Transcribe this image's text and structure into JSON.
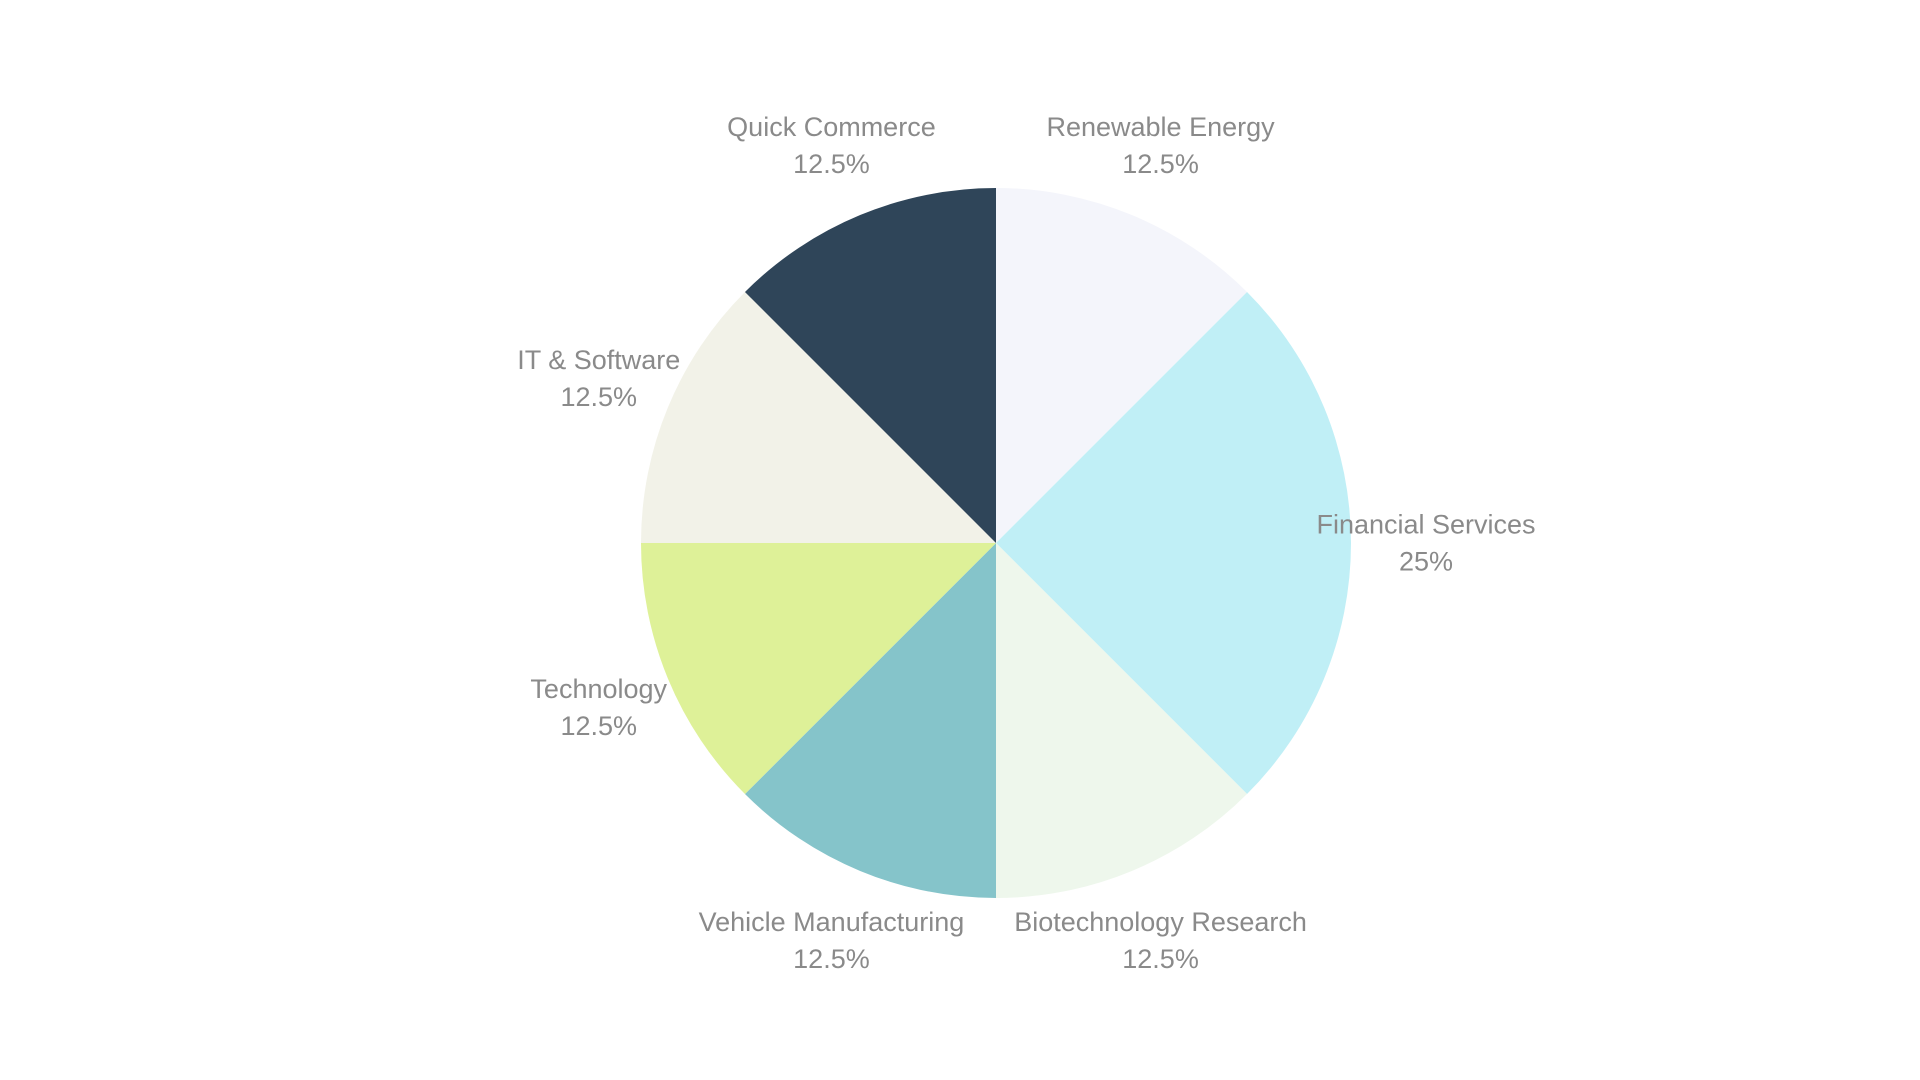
{
  "chart_data": {
    "type": "pie",
    "title": "",
    "start_angle_deg": 0,
    "direction": "clockwise",
    "slices": [
      {
        "label": "Renewable Energy",
        "value": 12.5,
        "display": "12.5%",
        "color": "#f4f5fb"
      },
      {
        "label": "Financial Services",
        "value": 25,
        "display": "25%",
        "color": "#c0eff6"
      },
      {
        "label": "Biotechnology Research",
        "value": 12.5,
        "display": "12.5%",
        "color": "#eef7ec"
      },
      {
        "label": "Vehicle Manufacturing",
        "value": 12.5,
        "display": "12.5%",
        "color": "#85c4ca"
      },
      {
        "label": "Technology",
        "value": 12.5,
        "display": "12.5%",
        "color": "#def198"
      },
      {
        "label": "IT & Software",
        "value": 12.5,
        "display": "12.5%",
        "color": "#f2f2e8"
      },
      {
        "label": "Quick Commerce",
        "value": 12.5,
        "display": "12.5%",
        "color": "#2f4559"
      }
    ],
    "label_color": "#8a8a8a",
    "legend": "none"
  }
}
